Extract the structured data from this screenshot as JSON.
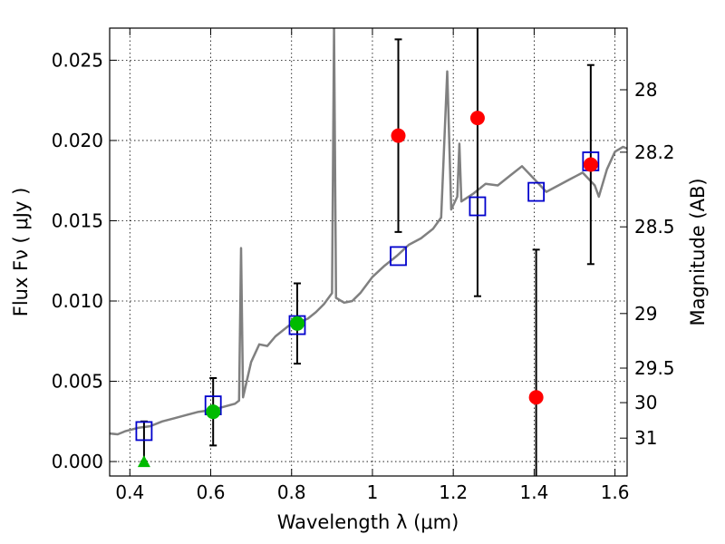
{
  "chart_data": {
    "type": "scatter",
    "xlabel": "Wavelength  λ (μm)",
    "ylabel": "Flux  Fν  ( μJy )",
    "ylabel_right": "Magnitude (AB)",
    "xlim": [
      0.35,
      1.63
    ],
    "ylim": [
      -0.0009,
      0.027
    ],
    "grid": true,
    "x_ticks": [
      0.4,
      0.6,
      0.8,
      1.0,
      1.2,
      1.4,
      1.6
    ],
    "x_tick_labels": [
      "0.4",
      "0.6",
      "0.8",
      "1",
      "1.2",
      "1.4",
      "1.6"
    ],
    "y_ticks": [
      0.0,
      0.005,
      0.01,
      0.015,
      0.02,
      0.025
    ],
    "y_tick_labels": [
      "0.000",
      "0.005",
      "0.010",
      "0.015",
      "0.020",
      "0.025"
    ],
    "right_ticks": [
      {
        "label": "28",
        "flux": 0.02316
      },
      {
        "label": "28.2",
        "flux": 0.01927
      },
      {
        "label": "28.5",
        "flux": 0.01462
      },
      {
        "label": "29",
        "flux": 0.00922
      },
      {
        "label": "29.5",
        "flux": 0.00582
      },
      {
        "label": "30",
        "flux": 0.00367
      },
      {
        "label": "31",
        "flux": 0.00146
      }
    ],
    "colors": {
      "spectrum": "#808080",
      "model_photometry": "#0000cc",
      "measured": "#ff0000",
      "measured_other": "#00bb00",
      "error_bar": "#000000"
    },
    "spectrum": [
      [
        0.35,
        0.00175
      ],
      [
        0.37,
        0.0017
      ],
      [
        0.39,
        0.0019
      ],
      [
        0.42,
        0.0021
      ],
      [
        0.45,
        0.0022
      ],
      [
        0.48,
        0.0025
      ],
      [
        0.51,
        0.0027
      ],
      [
        0.54,
        0.0029
      ],
      [
        0.57,
        0.0031
      ],
      [
        0.6,
        0.0032
      ],
      [
        0.63,
        0.0034
      ],
      [
        0.66,
        0.0036
      ],
      [
        0.67,
        0.0038
      ],
      [
        0.675,
        0.0133
      ],
      [
        0.68,
        0.004
      ],
      [
        0.7,
        0.0062
      ],
      [
        0.72,
        0.0073
      ],
      [
        0.74,
        0.0072
      ],
      [
        0.76,
        0.0078
      ],
      [
        0.78,
        0.0082
      ],
      [
        0.8,
        0.0086
      ],
      [
        0.82,
        0.0087
      ],
      [
        0.84,
        0.0089
      ],
      [
        0.86,
        0.0093
      ],
      [
        0.88,
        0.0098
      ],
      [
        0.9,
        0.0105
      ],
      [
        0.905,
        0.027
      ],
      [
        0.91,
        0.0102
      ],
      [
        0.93,
        0.0099
      ],
      [
        0.95,
        0.01
      ],
      [
        0.97,
        0.0105
      ],
      [
        1.0,
        0.0115
      ],
      [
        1.03,
        0.0122
      ],
      [
        1.06,
        0.0128
      ],
      [
        1.09,
        0.0135
      ],
      [
        1.12,
        0.0139
      ],
      [
        1.15,
        0.0145
      ],
      [
        1.17,
        0.0152
      ],
      [
        1.185,
        0.0243
      ],
      [
        1.195,
        0.0157
      ],
      [
        1.21,
        0.0165
      ],
      [
        1.215,
        0.0198
      ],
      [
        1.22,
        0.0162
      ],
      [
        1.25,
        0.0167
      ],
      [
        1.28,
        0.0173
      ],
      [
        1.31,
        0.0172
      ],
      [
        1.34,
        0.0178
      ],
      [
        1.37,
        0.0184
      ],
      [
        1.4,
        0.0176
      ],
      [
        1.43,
        0.0168
      ],
      [
        1.46,
        0.0172
      ],
      [
        1.49,
        0.0176
      ],
      [
        1.52,
        0.018
      ],
      [
        1.55,
        0.0172
      ],
      [
        1.56,
        0.0165
      ],
      [
        1.58,
        0.0182
      ],
      [
        1.6,
        0.0193
      ],
      [
        1.62,
        0.0196
      ],
      [
        1.63,
        0.0195
      ]
    ],
    "model_photometry": [
      {
        "x": 0.435,
        "y": 0.0019
      },
      {
        "x": 0.606,
        "y": 0.0035
      },
      {
        "x": 0.814,
        "y": 0.0085
      },
      {
        "x": 1.064,
        "y": 0.0128
      },
      {
        "x": 1.26,
        "y": 0.0159
      },
      {
        "x": 1.405,
        "y": 0.0168
      },
      {
        "x": 1.54,
        "y": 0.0187
      }
    ],
    "measured_photometry": [
      {
        "x": 0.606,
        "y": 0.0031,
        "yerr": 0.0021,
        "marker": "circle",
        "color": "#00bb00"
      },
      {
        "x": 0.814,
        "y": 0.0086,
        "yerr": 0.0025,
        "marker": "circle",
        "color": "#00bb00"
      },
      {
        "x": 1.064,
        "y": 0.0203,
        "yerr": 0.006,
        "marker": "circle",
        "color": "#ff0000"
      },
      {
        "x": 1.26,
        "y": 0.0214,
        "yerr": 0.0111,
        "marker": "circle",
        "color": "#ff0000"
      },
      {
        "x": 1.405,
        "y": 0.004,
        "yerr": 0.0092,
        "marker": "circle",
        "color": "#ff0000"
      },
      {
        "x": 1.54,
        "y": 0.0185,
        "yerr": 0.0062,
        "marker": "circle",
        "color": "#ff0000"
      }
    ],
    "upper_limits": [
      {
        "x": 0.435,
        "y": 0.0,
        "err_top": 0.0025,
        "marker": "triangle",
        "color": "#00bb00"
      }
    ]
  }
}
